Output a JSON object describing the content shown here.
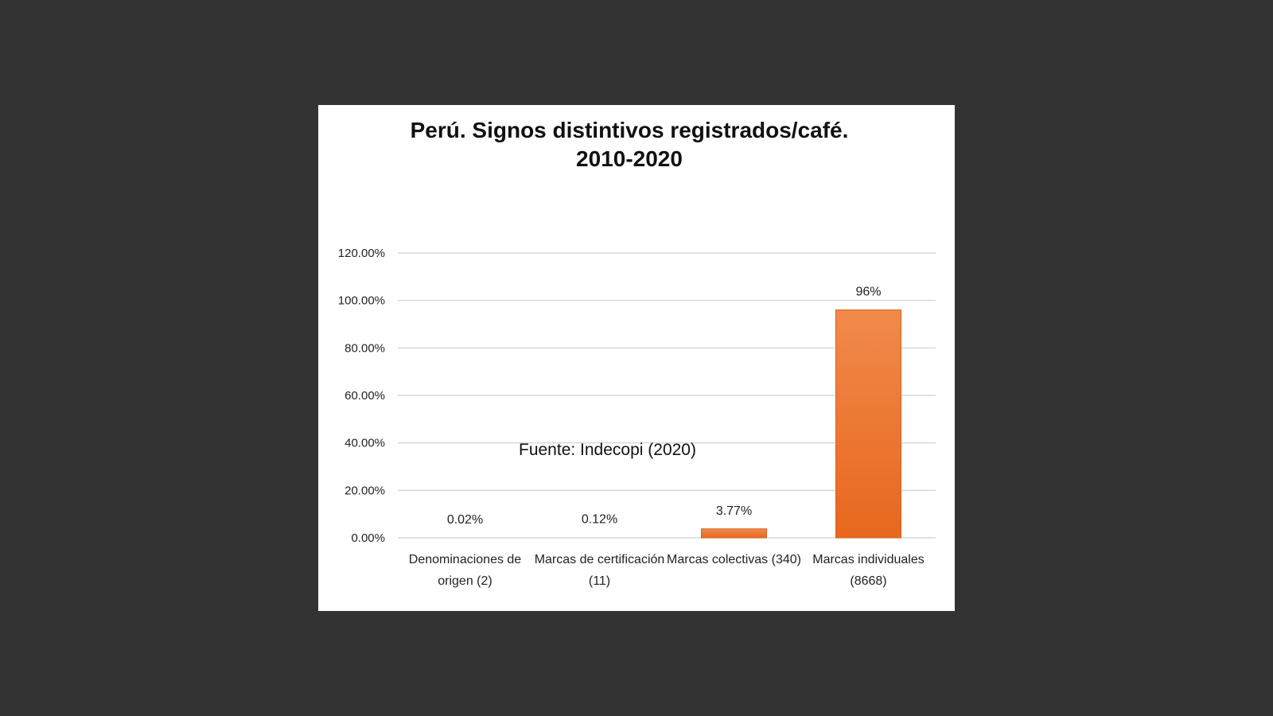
{
  "chart_data": {
    "type": "bar",
    "title": [
      "Perú. Signos distintivos registrados/café.",
      "2010-2020"
    ],
    "categories": [
      [
        "Denominaciones de",
        "origen (2)"
      ],
      [
        "Marcas de certificación",
        "(11)"
      ],
      [
        "Marcas colectivas (340)"
      ],
      [
        "Marcas individuales",
        "(8668)"
      ]
    ],
    "values": [
      0.02,
      0.12,
      3.77,
      96
    ],
    "data_labels": [
      "0.02%",
      "0.12%",
      "3.77%",
      "96%"
    ],
    "y_ticks": [
      0,
      20,
      40,
      60,
      80,
      100,
      120
    ],
    "y_tick_labels": [
      "0.00%",
      "20.00%",
      "40.00%",
      "60.00%",
      "80.00%",
      "100.00%",
      "120.00%"
    ],
    "ylim": [
      0,
      120
    ],
    "grid": true,
    "legend": "none",
    "bar_color_top": "#f08a4b",
    "bar_color_bottom": "#e8671e",
    "bar_edge_color": "#d95f1a",
    "grid_color": "#d9d9d9"
  },
  "source_note": "Fuente: Indecopi (2020)"
}
